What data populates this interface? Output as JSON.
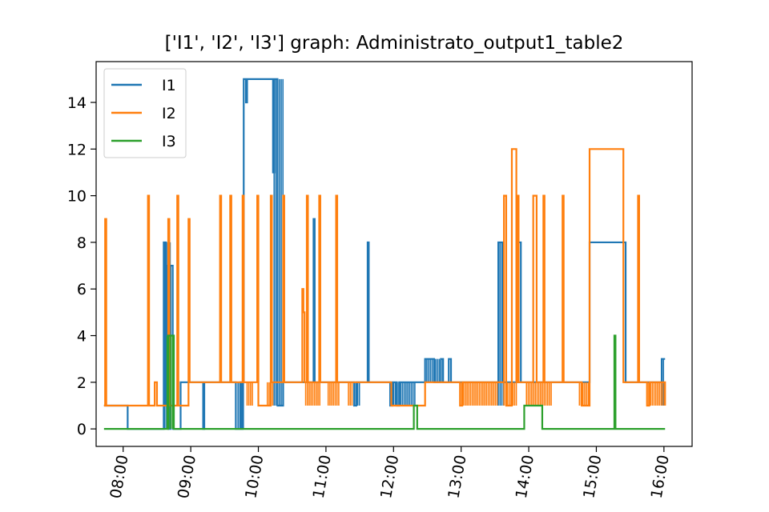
{
  "chart_data": {
    "type": "line",
    "title": "['I1', 'I2', 'I3'] graph: Administrato_output1_table2",
    "xlabel": "",
    "ylabel": "",
    "x_ticks": [
      "08:00",
      "09:00",
      "10:00",
      "11:00",
      "12:00",
      "13:00",
      "14:00",
      "15:00",
      "16:00"
    ],
    "y_ticks": [
      0,
      2,
      4,
      6,
      8,
      10,
      12,
      14
    ],
    "xlim": [
      "07:36",
      "16:25"
    ],
    "ylim": [
      -0.75,
      15.75
    ],
    "legend_position": "top-left",
    "grid": false,
    "series": [
      {
        "name": "I1",
        "color": "#1f77b4",
        "points": [
          [
            "07:43",
            1
          ],
          [
            "08:04",
            1
          ],
          [
            "08:04",
            0
          ],
          [
            "08:36",
            0
          ],
          [
            "08:36",
            8
          ],
          [
            "08:38",
            8
          ],
          [
            "08:38",
            1
          ],
          [
            "08:39",
            1
          ],
          [
            "08:39",
            7
          ],
          [
            "08:40",
            7
          ],
          [
            "08:40",
            0
          ],
          [
            "08:42",
            0
          ],
          [
            "08:42",
            7
          ],
          [
            "08:44",
            7
          ],
          [
            "08:44",
            0
          ],
          [
            "08:51",
            0
          ],
          [
            "08:51",
            2
          ],
          [
            "09:11",
            2
          ],
          [
            "09:11",
            0
          ],
          [
            "09:12",
            0
          ],
          [
            "09:12",
            2
          ],
          [
            "09:40",
            2
          ],
          [
            "09:40",
            0
          ],
          [
            "09:44",
            0
          ],
          [
            "09:44",
            2
          ],
          [
            "09:45",
            2
          ],
          [
            "09:45",
            0
          ],
          [
            "09:46",
            0
          ],
          [
            "09:46",
            2
          ],
          [
            "09:47",
            2
          ],
          [
            "09:47",
            15
          ],
          [
            "09:49",
            15
          ],
          [
            "09:49",
            14
          ],
          [
            "09:50",
            14
          ],
          [
            "09:50",
            15
          ],
          [
            "10:13",
            15
          ],
          [
            "10:13",
            11
          ],
          [
            "10:14",
            11
          ],
          [
            "10:14",
            15
          ],
          [
            "10:17",
            15
          ],
          [
            "10:17",
            1
          ],
          [
            "10:22",
            1
          ],
          [
            "10:22",
            2
          ],
          [
            "10:49",
            2
          ],
          [
            "10:49",
            9
          ],
          [
            "10:50",
            9
          ],
          [
            "10:50",
            2
          ],
          [
            "11:25",
            2
          ],
          [
            "11:25",
            1
          ],
          [
            "11:27",
            1
          ],
          [
            "11:27",
            2
          ],
          [
            "11:37",
            2
          ],
          [
            "11:37",
            8
          ],
          [
            "11:38",
            8
          ],
          [
            "11:38",
            2
          ],
          [
            "11:57",
            2
          ],
          [
            "11:57",
            1
          ],
          [
            "11:59",
            1
          ],
          [
            "11:59",
            2
          ],
          [
            "12:03",
            2
          ],
          [
            "12:03",
            1
          ],
          [
            "12:05",
            1
          ],
          [
            "12:05",
            2
          ],
          [
            "12:28",
            2
          ],
          [
            "12:28",
            3
          ],
          [
            "12:36",
            3
          ],
          [
            "12:36",
            2
          ],
          [
            "12:42",
            2
          ],
          [
            "12:42",
            3
          ],
          [
            "12:44",
            3
          ],
          [
            "12:44",
            2
          ],
          [
            "12:49",
            2
          ],
          [
            "12:49",
            3
          ],
          [
            "12:51",
            3
          ],
          [
            "12:51",
            2
          ],
          [
            "13:33",
            2
          ],
          [
            "13:33",
            8
          ],
          [
            "13:37",
            8
          ],
          [
            "13:37",
            2
          ],
          [
            "13:51",
            2
          ],
          [
            "13:51",
            8
          ],
          [
            "13:53",
            8
          ],
          [
            "13:53",
            2
          ],
          [
            "14:54",
            2
          ],
          [
            "14:54",
            8
          ],
          [
            "15:26",
            8
          ],
          [
            "15:26",
            2
          ],
          [
            "15:58",
            2
          ],
          [
            "15:58",
            3
          ],
          [
            "16:01",
            3
          ]
        ]
      },
      {
        "name": "I2",
        "color": "#ff7f0e",
        "points": [
          [
            "07:43",
            1
          ],
          [
            "07:44",
            1
          ],
          [
            "07:44",
            9
          ],
          [
            "07:45",
            9
          ],
          [
            "07:45",
            1
          ],
          [
            "08:22",
            1
          ],
          [
            "08:22",
            10
          ],
          [
            "08:23",
            10
          ],
          [
            "08:23",
            1
          ],
          [
            "08:28",
            1
          ],
          [
            "08:28",
            2
          ],
          [
            "08:30",
            2
          ],
          [
            "08:30",
            1
          ],
          [
            "08:40",
            1
          ],
          [
            "08:40",
            9
          ],
          [
            "08:41",
            9
          ],
          [
            "08:41",
            1
          ],
          [
            "08:48",
            1
          ],
          [
            "08:48",
            10
          ],
          [
            "08:49",
            10
          ],
          [
            "08:49",
            1
          ],
          [
            "08:58",
            1
          ],
          [
            "08:58",
            9
          ],
          [
            "08:59",
            9
          ],
          [
            "08:59",
            2
          ],
          [
            "09:26",
            2
          ],
          [
            "09:26",
            10
          ],
          [
            "09:27",
            10
          ],
          [
            "09:27",
            2
          ],
          [
            "09:35",
            2
          ],
          [
            "09:35",
            10
          ],
          [
            "09:36",
            10
          ],
          [
            "09:36",
            2
          ],
          [
            "09:46",
            2
          ],
          [
            "09:46",
            10
          ],
          [
            "09:47",
            10
          ],
          [
            "09:47",
            2
          ],
          [
            "09:59",
            2
          ],
          [
            "09:59",
            10
          ],
          [
            "10:00",
            10
          ],
          [
            "10:00",
            1
          ],
          [
            "10:11",
            1
          ],
          [
            "10:11",
            10
          ],
          [
            "10:12",
            10
          ],
          [
            "10:12",
            2
          ],
          [
            "10:22",
            2
          ],
          [
            "10:22",
            10
          ],
          [
            "10:23",
            10
          ],
          [
            "10:23",
            2
          ],
          [
            "10:39",
            2
          ],
          [
            "10:39",
            6
          ],
          [
            "10:40",
            6
          ],
          [
            "10:40",
            5
          ],
          [
            "10:41",
            5
          ],
          [
            "10:41",
            2
          ],
          [
            "10:43",
            2
          ],
          [
            "10:43",
            10
          ],
          [
            "10:44",
            10
          ],
          [
            "10:44",
            2
          ],
          [
            "10:54",
            2
          ],
          [
            "10:54",
            10
          ],
          [
            "10:55",
            10
          ],
          [
            "10:55",
            2
          ],
          [
            "11:09",
            2
          ],
          [
            "11:09",
            10
          ],
          [
            "11:10",
            10
          ],
          [
            "11:10",
            2
          ],
          [
            "11:58",
            2
          ],
          [
            "11:58",
            1
          ],
          [
            "12:28",
            1
          ],
          [
            "12:28",
            2
          ],
          [
            "12:59",
            2
          ],
          [
            "12:59",
            1
          ],
          [
            "13:01",
            1
          ],
          [
            "13:01",
            2
          ],
          [
            "13:38",
            2
          ],
          [
            "13:38",
            10
          ],
          [
            "13:40",
            10
          ],
          [
            "13:40",
            1
          ],
          [
            "13:45",
            1
          ],
          [
            "13:45",
            12
          ],
          [
            "13:49",
            12
          ],
          [
            "13:49",
            2
          ],
          [
            "13:50",
            2
          ],
          [
            "13:50",
            10
          ],
          [
            "13:51",
            10
          ],
          [
            "13:51",
            2
          ],
          [
            "14:04",
            2
          ],
          [
            "14:04",
            10
          ],
          [
            "14:07",
            10
          ],
          [
            "14:07",
            2
          ],
          [
            "14:13",
            2
          ],
          [
            "14:13",
            10
          ],
          [
            "14:14",
            10
          ],
          [
            "14:14",
            2
          ],
          [
            "14:30",
            2
          ],
          [
            "14:30",
            10
          ],
          [
            "14:31",
            10
          ],
          [
            "14:31",
            2
          ],
          [
            "14:47",
            2
          ],
          [
            "14:47",
            1
          ],
          [
            "14:54",
            1
          ],
          [
            "14:54",
            12
          ],
          [
            "15:24",
            12
          ],
          [
            "15:24",
            2
          ],
          [
            "15:37",
            2
          ],
          [
            "15:37",
            10
          ],
          [
            "15:38",
            10
          ],
          [
            "15:38",
            2
          ],
          [
            "15:45",
            2
          ],
          [
            "15:45",
            1
          ],
          [
            "15:47",
            1
          ],
          [
            "15:47",
            2
          ],
          [
            "16:01",
            2
          ],
          [
            "16:01",
            1
          ]
        ]
      },
      {
        "name": "I3",
        "color": "#2ca02c",
        "points": [
          [
            "07:43",
            0
          ],
          [
            "08:40",
            0
          ],
          [
            "08:40",
            4
          ],
          [
            "08:45",
            4
          ],
          [
            "08:45",
            0
          ],
          [
            "12:18",
            0
          ],
          [
            "12:18",
            1
          ],
          [
            "12:21",
            1
          ],
          [
            "12:21",
            0
          ],
          [
            "13:56",
            0
          ],
          [
            "13:56",
            1
          ],
          [
            "14:12",
            1
          ],
          [
            "14:12",
            0
          ],
          [
            "15:16",
            0
          ],
          [
            "15:16",
            4
          ],
          [
            "15:17",
            4
          ],
          [
            "15:17",
            0
          ],
          [
            "16:01",
            0
          ]
        ]
      }
    ],
    "jitter_bands": [
      {
        "series": "I1",
        "from": "08:37",
        "to": "08:43",
        "low": 0,
        "high": 8
      },
      {
        "series": "I1",
        "from": "09:42",
        "to": "09:47",
        "low": 0,
        "high": 2
      },
      {
        "series": "I1",
        "from": "10:14",
        "to": "10:22",
        "low": 1,
        "high": 15
      },
      {
        "series": "I1",
        "from": "11:25",
        "to": "11:30",
        "low": 1,
        "high": 2
      },
      {
        "series": "I1",
        "from": "11:57",
        "to": "12:20",
        "low": 1,
        "high": 2
      },
      {
        "series": "I1",
        "from": "12:28",
        "to": "12:44",
        "low": 2,
        "high": 3
      },
      {
        "series": "I1",
        "from": "13:33",
        "to": "13:38",
        "low": 1,
        "high": 8
      },
      {
        "series": "I1",
        "from": "15:58",
        "to": "16:01",
        "low": 1,
        "high": 3
      },
      {
        "series": "I2",
        "from": "09:50",
        "to": "09:55",
        "low": 1,
        "high": 2
      },
      {
        "series": "I2",
        "from": "10:08",
        "to": "10:13",
        "low": 1,
        "high": 2
      },
      {
        "series": "I2",
        "from": "10:42",
        "to": "10:56",
        "low": 1,
        "high": 2
      },
      {
        "series": "I2",
        "from": "11:02",
        "to": "11:12",
        "low": 1,
        "high": 2
      },
      {
        "series": "I2",
        "from": "11:20",
        "to": "11:24",
        "low": 1,
        "high": 2
      },
      {
        "series": "I2",
        "from": "12:59",
        "to": "13:33",
        "low": 1,
        "high": 2
      },
      {
        "series": "I2",
        "from": "13:38",
        "to": "13:50",
        "low": 1,
        "high": 2
      },
      {
        "series": "I2",
        "from": "13:58",
        "to": "14:20",
        "low": 1,
        "high": 2
      },
      {
        "series": "I2",
        "from": "14:45",
        "to": "14:54",
        "low": 1,
        "high": 2
      },
      {
        "series": "I2",
        "from": "15:45",
        "to": "16:01",
        "low": 1,
        "high": 2
      },
      {
        "series": "I3",
        "from": "08:39",
        "to": "08:45",
        "low": 0,
        "high": 4
      }
    ]
  }
}
